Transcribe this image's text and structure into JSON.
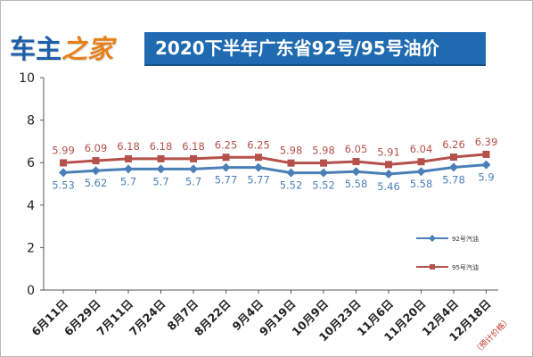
{
  "logo": {
    "part1": "车主",
    "part2": "之家"
  },
  "title_bar": {
    "title": "2020下半年广东省92号/95号油价"
  },
  "colors": {
    "series_92": "#4a7fb8",
    "series_95": "#b5504a",
    "title_bg": "#1f6ab0",
    "logo_blue": "#1d5fa8",
    "logo_orange": "#e8801a"
  },
  "chart_data": {
    "type": "line",
    "title": "2020下半年广东省92号/95号油价",
    "xlabel": "",
    "ylabel": "",
    "categories": [
      "6月11日",
      "6月29日",
      "7月11日",
      "7月24日",
      "8月7日",
      "8月22日",
      "9月4日",
      "9月19日",
      "10月9日",
      "10月23日",
      "11月6日",
      "11月20日",
      "12月4日",
      "12月18日"
    ],
    "category_notes": [
      {
        "category": "12月18日",
        "note": "（预计价格）"
      }
    ],
    "ylim": [
      0,
      10
    ],
    "yticks": [
      0,
      2,
      4,
      6,
      8,
      10
    ],
    "grid": false,
    "legend_position": "right",
    "series": [
      {
        "name": "92号汽油",
        "color": "#4a7fb8",
        "marker": "diamond",
        "values": [
          5.53,
          5.62,
          5.7,
          5.7,
          5.7,
          5.77,
          5.77,
          5.52,
          5.52,
          5.58,
          5.46,
          5.58,
          5.78,
          5.9
        ],
        "labels": [
          "5.53",
          "5.62",
          "5.7",
          "5.7",
          "5.7",
          "5.77",
          "5.77",
          "5.52",
          "5.52",
          "5.58",
          "5.46",
          "5.58",
          "5.78",
          "5.9"
        ]
      },
      {
        "name": "95号汽油",
        "color": "#b5504a",
        "marker": "square",
        "values": [
          5.99,
          6.09,
          6.18,
          6.18,
          6.18,
          6.25,
          6.25,
          5.98,
          5.98,
          6.05,
          5.91,
          6.04,
          6.26,
          6.39
        ],
        "labels": [
          "5.99",
          "6.09",
          "6.18",
          "6.18",
          "6.18",
          "6.25",
          "6.25",
          "5.98",
          "5.98",
          "6.05",
          "5.91",
          "6.04",
          "6.26",
          "6.39"
        ]
      }
    ]
  }
}
